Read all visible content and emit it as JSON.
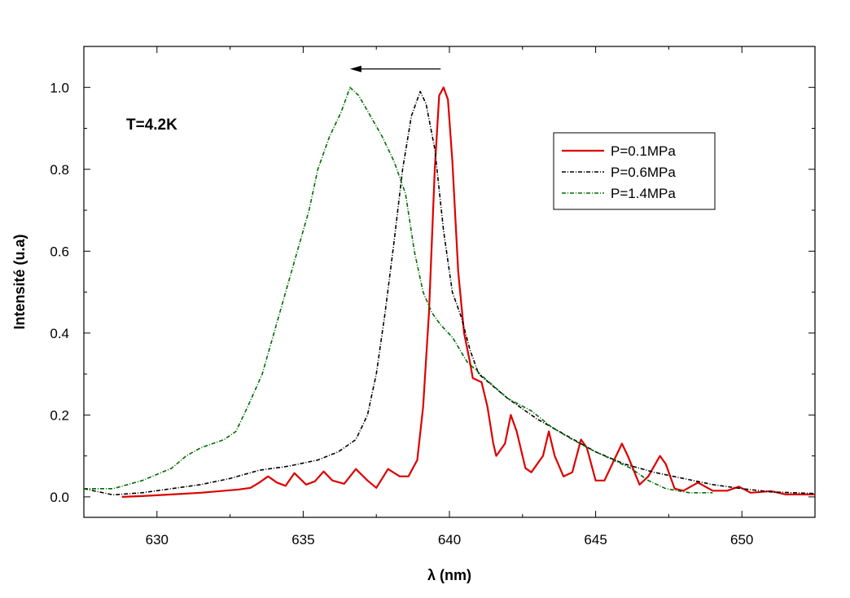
{
  "chart_data": {
    "type": "line",
    "xlabel": "λ (nm)",
    "ylabel": "Intensité (u.a)",
    "xlim": [
      627.5,
      652.5
    ],
    "ylim": [
      -0.05,
      1.1
    ],
    "x_ticks": [
      630,
      635,
      640,
      645,
      650
    ],
    "x_tick_labels": [
      "630",
      "635",
      "640",
      "645",
      "650"
    ],
    "y_ticks": [
      0.0,
      0.2,
      0.4,
      0.6,
      0.8,
      1.0
    ],
    "y_tick_labels": [
      "0.0",
      "0.2",
      "0.4",
      "0.6",
      "0.8",
      "1.0"
    ],
    "grid": false,
    "legend_position": "top-right",
    "annotation_text": "T=4.2K",
    "annotation_arrow": {
      "from": [
        639.7,
        1.045
      ],
      "to": [
        636.6,
        1.045
      ]
    },
    "series": [
      {
        "name": "P=0.1MPa",
        "color": "#dd0000",
        "style": "solid",
        "points": [
          [
            628.8,
            0.0
          ],
          [
            629.5,
            0.002
          ],
          [
            630.5,
            0.006
          ],
          [
            631.5,
            0.01
          ],
          [
            632.0,
            0.013
          ],
          [
            632.8,
            0.018
          ],
          [
            633.2,
            0.022
          ],
          [
            633.5,
            0.035
          ],
          [
            633.8,
            0.05
          ],
          [
            634.1,
            0.035
          ],
          [
            634.4,
            0.027
          ],
          [
            634.7,
            0.058
          ],
          [
            635.1,
            0.03
          ],
          [
            635.4,
            0.038
          ],
          [
            635.7,
            0.062
          ],
          [
            636.0,
            0.04
          ],
          [
            636.4,
            0.032
          ],
          [
            636.8,
            0.068
          ],
          [
            637.2,
            0.04
          ],
          [
            637.5,
            0.022
          ],
          [
            637.9,
            0.068
          ],
          [
            638.3,
            0.05
          ],
          [
            638.6,
            0.05
          ],
          [
            638.9,
            0.09
          ],
          [
            639.1,
            0.22
          ],
          [
            639.3,
            0.45
          ],
          [
            639.5,
            0.8
          ],
          [
            639.65,
            0.98
          ],
          [
            639.8,
            1.0
          ],
          [
            639.95,
            0.97
          ],
          [
            640.1,
            0.82
          ],
          [
            640.3,
            0.55
          ],
          [
            640.5,
            0.4
          ],
          [
            640.7,
            0.33
          ],
          [
            640.8,
            0.29
          ],
          [
            641.1,
            0.28
          ],
          [
            641.3,
            0.22
          ],
          [
            641.5,
            0.13
          ],
          [
            641.6,
            0.1
          ],
          [
            641.9,
            0.13
          ],
          [
            642.1,
            0.2
          ],
          [
            642.3,
            0.16
          ],
          [
            642.6,
            0.07
          ],
          [
            642.8,
            0.06
          ],
          [
            643.2,
            0.1
          ],
          [
            643.4,
            0.16
          ],
          [
            643.6,
            0.1
          ],
          [
            643.9,
            0.05
          ],
          [
            644.2,
            0.06
          ],
          [
            644.5,
            0.14
          ],
          [
            644.7,
            0.12
          ],
          [
            645.0,
            0.04
          ],
          [
            645.3,
            0.04
          ],
          [
            645.7,
            0.1
          ],
          [
            645.9,
            0.13
          ],
          [
            646.1,
            0.1
          ],
          [
            646.5,
            0.03
          ],
          [
            646.8,
            0.05
          ],
          [
            647.2,
            0.1
          ],
          [
            647.4,
            0.08
          ],
          [
            647.7,
            0.02
          ],
          [
            648.0,
            0.015
          ],
          [
            648.5,
            0.035
          ],
          [
            649.0,
            0.015
          ],
          [
            649.5,
            0.015
          ],
          [
            649.9,
            0.025
          ],
          [
            650.3,
            0.01
          ],
          [
            651.0,
            0.014
          ],
          [
            651.5,
            0.006
          ],
          [
            652.5,
            0.006
          ]
        ]
      },
      {
        "name": "P=0.6MPa",
        "color": "#000000",
        "style": "dashdot",
        "points": [
          [
            627.5,
            0.02
          ],
          [
            628.5,
            0.005
          ],
          [
            629.5,
            0.01
          ],
          [
            630.5,
            0.02
          ],
          [
            631.5,
            0.03
          ],
          [
            632.5,
            0.045
          ],
          [
            633.5,
            0.065
          ],
          [
            634.5,
            0.075
          ],
          [
            635.5,
            0.09
          ],
          [
            636.2,
            0.11
          ],
          [
            636.8,
            0.14
          ],
          [
            637.2,
            0.2
          ],
          [
            637.5,
            0.3
          ],
          [
            637.8,
            0.45
          ],
          [
            638.1,
            0.62
          ],
          [
            638.4,
            0.8
          ],
          [
            638.7,
            0.93
          ],
          [
            639.0,
            0.99
          ],
          [
            639.2,
            0.96
          ],
          [
            639.5,
            0.85
          ],
          [
            639.8,
            0.65
          ],
          [
            640.1,
            0.5
          ],
          [
            640.4,
            0.44
          ],
          [
            640.7,
            0.36
          ],
          [
            641.0,
            0.3
          ],
          [
            641.5,
            0.27
          ],
          [
            642.0,
            0.24
          ],
          [
            643.0,
            0.19
          ],
          [
            644.0,
            0.15
          ],
          [
            645.0,
            0.11
          ],
          [
            646.0,
            0.08
          ],
          [
            647.0,
            0.06
          ],
          [
            648.0,
            0.045
          ],
          [
            649.0,
            0.03
          ],
          [
            650.0,
            0.02
          ],
          [
            651.0,
            0.012
          ],
          [
            652.5,
            0.008
          ]
        ]
      },
      {
        "name": "P=1.4MPa",
        "color": "#006b00",
        "style": "dashdot",
        "points": [
          [
            627.5,
            0.02
          ],
          [
            628.5,
            0.02
          ],
          [
            629.5,
            0.04
          ],
          [
            630.5,
            0.07
          ],
          [
            631.0,
            0.1
          ],
          [
            631.5,
            0.12
          ],
          [
            632.3,
            0.14
          ],
          [
            632.7,
            0.16
          ],
          [
            633.1,
            0.22
          ],
          [
            633.6,
            0.3
          ],
          [
            634.0,
            0.4
          ],
          [
            634.4,
            0.5
          ],
          [
            634.8,
            0.6
          ],
          [
            635.2,
            0.7
          ],
          [
            635.5,
            0.8
          ],
          [
            635.9,
            0.88
          ],
          [
            636.3,
            0.94
          ],
          [
            636.6,
            1.0
          ],
          [
            636.9,
            0.98
          ],
          [
            637.3,
            0.93
          ],
          [
            637.7,
            0.88
          ],
          [
            638.1,
            0.82
          ],
          [
            638.5,
            0.74
          ],
          [
            638.8,
            0.6
          ],
          [
            639.1,
            0.5
          ],
          [
            639.4,
            0.45
          ],
          [
            639.7,
            0.42
          ],
          [
            640.1,
            0.39
          ],
          [
            640.6,
            0.33
          ],
          [
            641.2,
            0.29
          ],
          [
            642.0,
            0.24
          ],
          [
            642.8,
            0.21
          ],
          [
            643.5,
            0.17
          ],
          [
            644.2,
            0.14
          ],
          [
            645.0,
            0.11
          ],
          [
            645.6,
            0.09
          ],
          [
            646.2,
            0.07
          ],
          [
            646.8,
            0.04
          ],
          [
            647.4,
            0.02
          ],
          [
            648.2,
            0.01
          ],
          [
            649.0,
            0.01
          ]
        ]
      }
    ]
  }
}
